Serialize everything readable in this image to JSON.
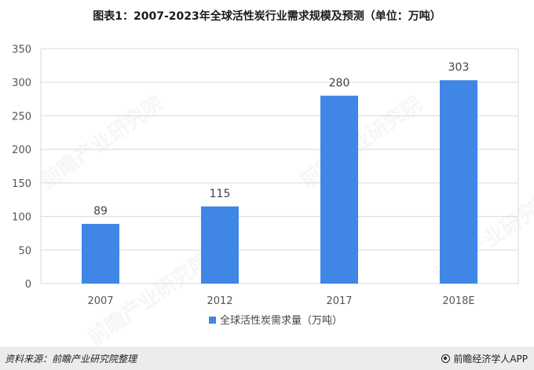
{
  "chart_data": {
    "type": "bar",
    "title": "图表1：2007-2023年全球活性炭行业需求规模及预测（单位：万吨）",
    "categories": [
      "2007",
      "2012",
      "2017",
      "2018E"
    ],
    "series": [
      {
        "name": "全球活性炭需求量（万吨）",
        "values": [
          89,
          115,
          280,
          303
        ]
      }
    ],
    "data_labels": [
      "89",
      "115",
      "280",
      "303"
    ],
    "yticks": [
      "0",
      "50",
      "100",
      "150",
      "200",
      "250",
      "300",
      "350"
    ],
    "ylim": [
      0,
      350
    ],
    "grid": "horizontal",
    "legend_position": "bottom-center",
    "bar_color": "#3f86e6"
  },
  "footer": {
    "source": "资料来源：前瞻产业研究院整理",
    "brand": "前瞻经济学人APP"
  }
}
